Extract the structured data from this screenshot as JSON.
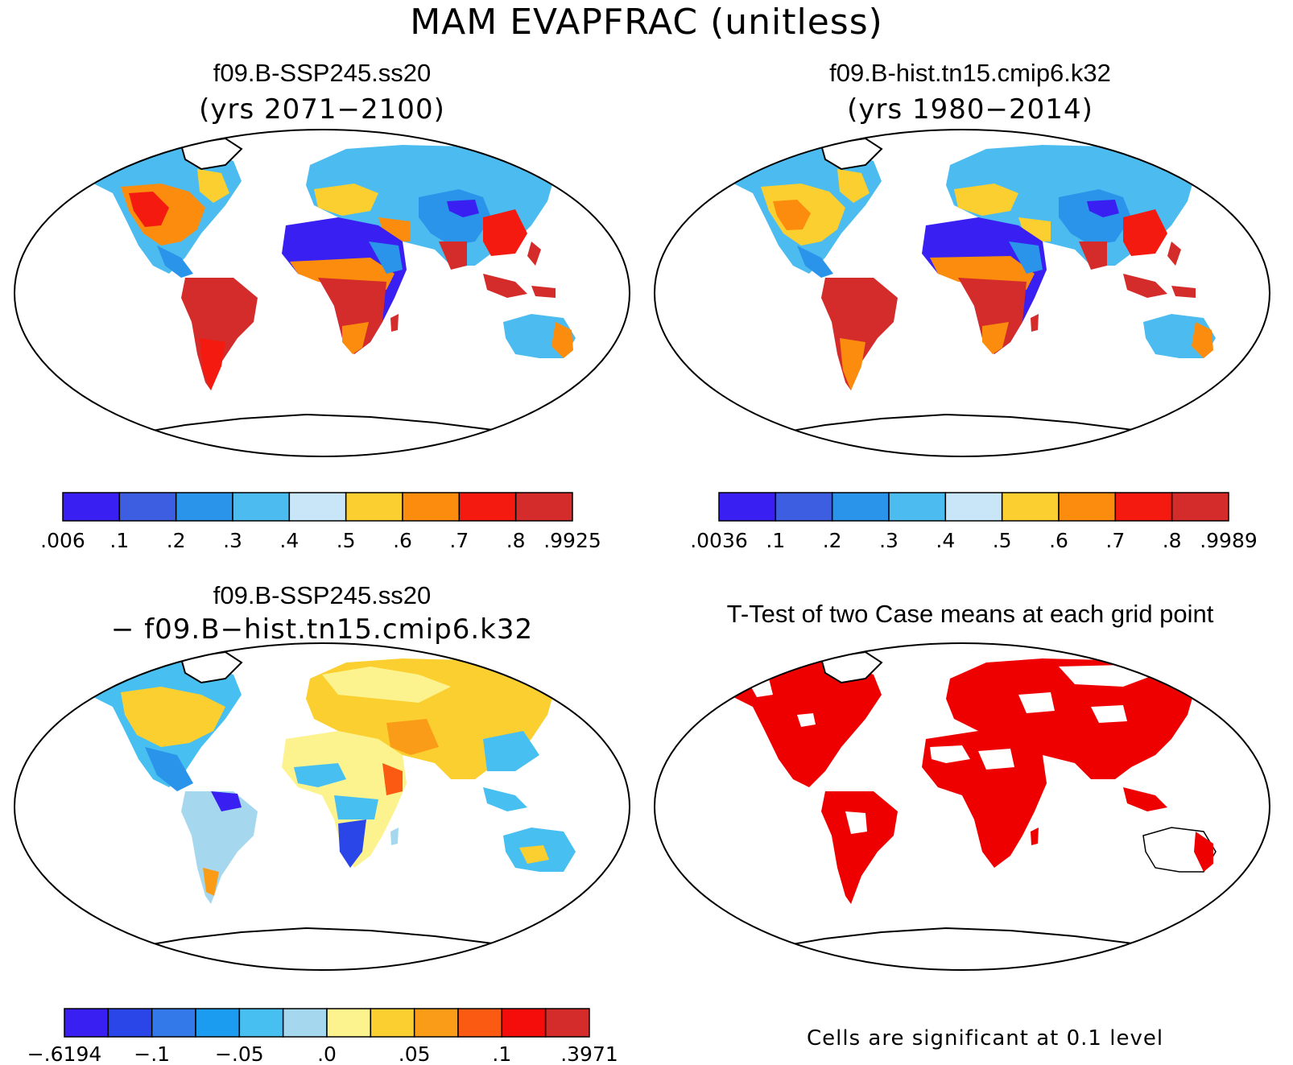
{
  "main_title": "MAM EVAPFRAC (unitless)",
  "panels": {
    "top_left": {
      "title": "f09.B-SSP245.ss20",
      "subtitle": "(yrs 2071−2100)"
    },
    "top_right": {
      "title": "f09.B-hist.tn15.cmip6.k32",
      "subtitle": "(yrs 1980−2014)"
    },
    "bottom_left": {
      "title": "f09.B-SSP245.ss20",
      "subtitle": "− f09.B−hist.tn15.cmip6.k32"
    },
    "bottom_right": {
      "title": "T-Test of two Case means at each grid point",
      "note": "Cells are significant at 0.1 level"
    }
  },
  "colorbars": {
    "top_left": {
      "colors": [
        "#3a1ff2",
        "#3d5ee0",
        "#2a94ea",
        "#4cbcf0",
        "#c8e6f7",
        "#fbcf2f",
        "#fb8c0d",
        "#f41a0f",
        "#d42b2b"
      ],
      "labels": [
        ".006",
        ".1",
        ".2",
        ".3",
        ".4",
        ".5",
        ".6",
        ".7",
        ".8",
        ".9925"
      ]
    },
    "top_right": {
      "colors": [
        "#3a1ff2",
        "#3d5ee0",
        "#2a94ea",
        "#4cbcf0",
        "#c8e6f7",
        "#fbcf2f",
        "#fb8c0d",
        "#f41a0f",
        "#d42b2b"
      ],
      "labels": [
        ".0036",
        ".1",
        ".2",
        ".3",
        ".4",
        ".5",
        ".6",
        ".7",
        ".8",
        ".9989"
      ]
    },
    "bottom_left": {
      "colors": [
        "#3a1ff2",
        "#2a45e8",
        "#3479ea",
        "#1c9cf0",
        "#48bff1",
        "#a5d8ef",
        "#fdf38e",
        "#fbcf2f",
        "#fb9c19",
        "#fb5a12",
        "#f40d0b",
        "#d42b2b"
      ],
      "labels": [
        "−.6194",
        "−.1",
        "−.05",
        ".0",
        ".05",
        ".1",
        ".3971"
      ],
      "label_boundaries": [
        0,
        2,
        4,
        6,
        8,
        10,
        12
      ]
    }
  },
  "map_colors": {
    "desert": "#3a1ff2",
    "semi_arid": "#2a94ea",
    "mid_lat": "#fbcf2f",
    "humid": "#f41a0f",
    "tropical": "#d42b2b",
    "boreal": "#4cbcf0",
    "diff_neutral": "#fdf38e",
    "diff_negative": "#48bff1",
    "significant": "#ee0000"
  }
}
